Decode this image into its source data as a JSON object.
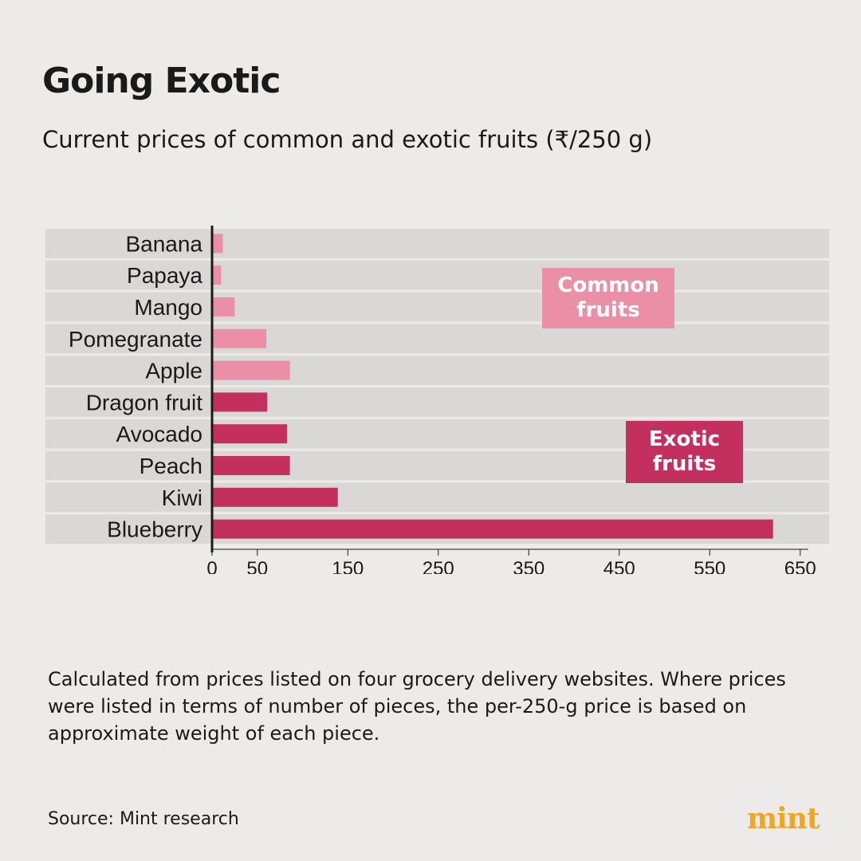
{
  "header": {
    "title": "Going Exotic",
    "subtitle": "Current prices of common and exotic fruits (₹/250 g)"
  },
  "footer": {
    "note": "Calculated from prices listed on four grocery delivery websites. Where prices were listed in terms of number of pieces, the per-250-g price is based on approximate weight of each piece.",
    "source": "Source: Mint research",
    "logo": "mint"
  },
  "colors": {
    "background": "#ecebea",
    "band": "#d9d8d7",
    "common": "#ea8fa6",
    "exotic": "#c33060",
    "logo": "#f2a51f",
    "axis": "#1a1a1a"
  },
  "chart_data": {
    "type": "bar",
    "orientation": "horizontal",
    "categories": [
      "Banana",
      "Papaya",
      "Mango",
      "Pomegranate",
      "Apple",
      "Dragon fruit",
      "Avocado",
      "Peach",
      "Kiwi",
      "Blueberry"
    ],
    "values": [
      12,
      10,
      25,
      60,
      86,
      61,
      83,
      86,
      139,
      620
    ],
    "groups": [
      "common",
      "common",
      "common",
      "common",
      "common",
      "exotic",
      "exotic",
      "exotic",
      "exotic",
      "exotic"
    ],
    "group_labels": {
      "common": "Common fruits",
      "exotic": "Exotic fruits"
    },
    "xticks": [
      0,
      50,
      150,
      250,
      350,
      450,
      550,
      650
    ],
    "xlim": [
      0,
      650
    ],
    "grid": false,
    "xlabel": "",
    "ylabel": ""
  }
}
